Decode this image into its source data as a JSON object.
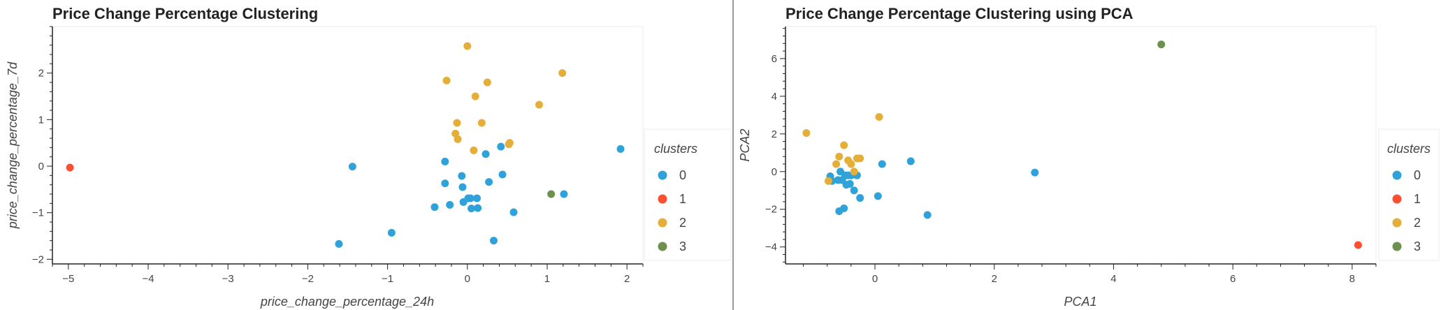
{
  "chart_data": [
    {
      "type": "scatter",
      "title": "Price Change Percentage Clustering",
      "xlabel": "price_change_percentage_24h",
      "ylabel": "price_change_percentage_7d",
      "xlim": [
        -5.2,
        2.2
      ],
      "ylim": [
        -2.1,
        3.0
      ],
      "xticks": [
        -5,
        -4,
        -3,
        -2,
        -1,
        0,
        1,
        2
      ],
      "yticks": [
        -2,
        -1,
        0,
        1,
        2
      ],
      "legend_title": "clusters",
      "legend": [
        "0",
        "1",
        "2",
        "3"
      ],
      "colors": [
        "#30a2da",
        "#fc4f30",
        "#e5ae38",
        "#6d904f"
      ],
      "series": [
        {
          "name": "0",
          "points": [
            [
              -1.44,
              -0.01
            ],
            [
              -1.61,
              -1.67
            ],
            [
              -0.95,
              -1.43
            ],
            [
              -0.28,
              0.1
            ],
            [
              -0.28,
              -0.37
            ],
            [
              -0.22,
              -0.83
            ],
            [
              -0.41,
              -0.88
            ],
            [
              -0.07,
              -0.21
            ],
            [
              -0.06,
              -0.45
            ],
            [
              -0.05,
              -0.77
            ],
            [
              0.01,
              -0.69
            ],
            [
              0.04,
              -0.69
            ],
            [
              0.12,
              -0.69
            ],
            [
              0.05,
              -0.91
            ],
            [
              0.13,
              -0.9
            ],
            [
              0.23,
              0.26
            ],
            [
              0.27,
              -0.34
            ],
            [
              0.33,
              -1.6
            ],
            [
              0.42,
              0.42
            ],
            [
              0.44,
              -0.18
            ],
            [
              0.58,
              -0.99
            ],
            [
              1.21,
              -0.6
            ],
            [
              1.92,
              0.37
            ]
          ]
        },
        {
          "name": "1",
          "points": [
            [
              -4.98,
              -0.03
            ]
          ]
        },
        {
          "name": "2",
          "points": [
            [
              0.0,
              2.58
            ],
            [
              -0.26,
              1.84
            ],
            [
              0.25,
              1.8
            ],
            [
              0.1,
              1.5
            ],
            [
              1.19,
              2.0
            ],
            [
              0.9,
              1.32
            ],
            [
              -0.13,
              0.93
            ],
            [
              0.18,
              0.93
            ],
            [
              -0.15,
              0.7
            ],
            [
              -0.12,
              0.58
            ],
            [
              0.52,
              0.47
            ],
            [
              0.53,
              0.5
            ],
            [
              0.08,
              0.34
            ]
          ]
        },
        {
          "name": "3",
          "points": [
            [
              1.05,
              -0.6
            ]
          ]
        }
      ]
    },
    {
      "type": "scatter",
      "title": "Price Change Percentage Clustering using PCA",
      "xlabel": "PCA1",
      "ylabel": "PCA2",
      "xlim": [
        -1.5,
        8.4
      ],
      "ylim": [
        -4.9,
        7.7
      ],
      "xticks": [
        0,
        2,
        4,
        6,
        8
      ],
      "yticks": [
        -4,
        -2,
        0,
        2,
        4,
        6
      ],
      "legend_title": "clusters",
      "legend": [
        "0",
        "1",
        "2",
        "3"
      ],
      "colors": [
        "#30a2da",
        "#fc4f30",
        "#e5ae38",
        "#6d904f"
      ],
      "series": [
        {
          "name": "0",
          "points": [
            [
              -0.75,
              -0.25
            ],
            [
              -0.72,
              -0.5
            ],
            [
              -0.62,
              -0.45
            ],
            [
              -0.58,
              0.0
            ],
            [
              -0.55,
              -0.45
            ],
            [
              -0.5,
              -0.2
            ],
            [
              -0.45,
              -0.2
            ],
            [
              -0.4,
              -0.2
            ],
            [
              -0.35,
              -0.15
            ],
            [
              -0.3,
              -0.2
            ],
            [
              -0.6,
              -2.1
            ],
            [
              -0.52,
              -1.95
            ],
            [
              -0.48,
              -0.7
            ],
            [
              -0.42,
              -0.65
            ],
            [
              -0.35,
              -1.0
            ],
            [
              -0.25,
              -1.4
            ],
            [
              0.05,
              -1.3
            ],
            [
              0.12,
              0.4
            ],
            [
              0.6,
              0.55
            ],
            [
              0.88,
              -2.3
            ],
            [
              2.68,
              -0.05
            ]
          ]
        },
        {
          "name": "1",
          "points": [
            [
              8.1,
              -3.9
            ]
          ]
        },
        {
          "name": "2",
          "points": [
            [
              -1.15,
              2.05
            ],
            [
              -0.78,
              -0.5
            ],
            [
              -0.65,
              0.4
            ],
            [
              -0.6,
              0.8
            ],
            [
              -0.52,
              1.4
            ],
            [
              -0.45,
              0.6
            ],
            [
              -0.4,
              0.4
            ],
            [
              -0.35,
              0.0
            ],
            [
              -0.3,
              0.7
            ],
            [
              -0.25,
              0.7
            ],
            [
              0.07,
              2.9
            ]
          ]
        },
        {
          "name": "3",
          "points": [
            [
              4.8,
              6.75
            ]
          ]
        }
      ]
    }
  ]
}
